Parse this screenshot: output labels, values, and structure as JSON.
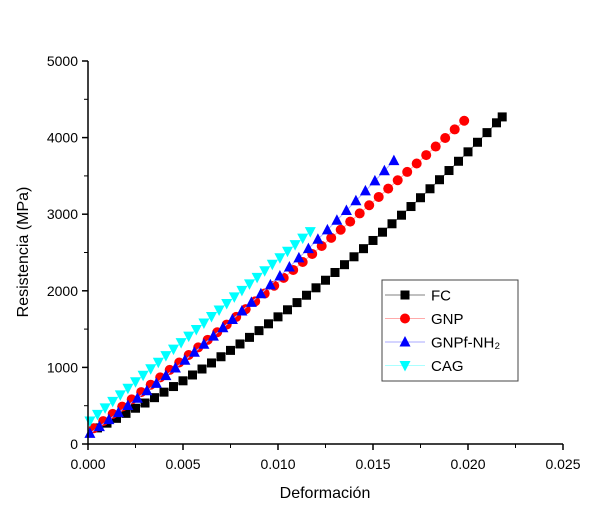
{
  "chart_data": {
    "type": "scatter",
    "title": "",
    "xlabel": "Deformación",
    "ylabel": "Resistencia (MPa)",
    "xlim": [
      0,
      0.025
    ],
    "ylim": [
      0,
      5000
    ],
    "xticks": [
      "0.000",
      "0.005",
      "0.010",
      "0.015",
      "0.020",
      "0.025"
    ],
    "yticks": [
      "0",
      "1000",
      "2000",
      "3000",
      "4000",
      "5000"
    ],
    "grid": false,
    "legend_position": "right",
    "series": [
      {
        "name": "FC",
        "marker": "square",
        "color": "#000000",
        "line_color": "#808080",
        "x": [
          0.0005,
          0.001,
          0.0015,
          0.002,
          0.0025,
          0.003,
          0.0035,
          0.004,
          0.0045,
          0.005,
          0.0055,
          0.006,
          0.0065,
          0.007,
          0.0075,
          0.008,
          0.0085,
          0.009,
          0.0095,
          0.01,
          0.0105,
          0.011,
          0.0115,
          0.012,
          0.0125,
          0.013,
          0.0135,
          0.014,
          0.0145,
          0.015,
          0.0155,
          0.016,
          0.0165,
          0.017,
          0.0175,
          0.018,
          0.0185,
          0.019,
          0.0195,
          0.02,
          0.0205,
          0.021,
          0.0215,
          0.0218
        ],
        "y": [
          210,
          272,
          335,
          400,
          467,
          535,
          605,
          677,
          750,
          825,
          901,
          979,
          1058,
          1139,
          1222,
          1306,
          1392,
          1480,
          1569,
          1660,
          1752,
          1846,
          1942,
          2039,
          2138,
          2239,
          2341,
          2444,
          2550,
          2657,
          2765,
          2875,
          2987,
          3100,
          3215,
          3332,
          3450,
          3570,
          3691,
          3814,
          3939,
          4065,
          4193,
          4270
        ]
      },
      {
        "name": "GNP",
        "marker": "circle",
        "color": "#ff0000",
        "line_color": "#ffaaaa",
        "x": [
          0.0003,
          0.0008,
          0.0013,
          0.0018,
          0.0023,
          0.0028,
          0.0033,
          0.0038,
          0.0043,
          0.0048,
          0.0053,
          0.0058,
          0.0063,
          0.0068,
          0.0073,
          0.0078,
          0.0083,
          0.0088,
          0.0093,
          0.0098,
          0.0103,
          0.0108,
          0.0113,
          0.0118,
          0.0123,
          0.0128,
          0.0133,
          0.0138,
          0.0143,
          0.0148,
          0.0153,
          0.0158,
          0.0163,
          0.0168,
          0.0173,
          0.0178,
          0.0183,
          0.0188,
          0.0193,
          0.0198
        ],
        "y": [
          206,
          299,
          393,
          488,
          582,
          678,
          774,
          870,
          967,
          1064,
          1162,
          1261,
          1360,
          1459,
          1559,
          1659,
          1760,
          1862,
          1964,
          2066,
          2169,
          2272,
          2376,
          2481,
          2585,
          2691,
          2797,
          2903,
          3010,
          3117,
          3225,
          3334,
          3443,
          3552,
          3662,
          3772,
          3883,
          3995,
          4107,
          4220
        ]
      },
      {
        "name": "GNPf-NH₂",
        "marker": "triangle-up",
        "color": "#0000ff",
        "line_color": "#aaaaff",
        "x": [
          0.0001,
          0.0006,
          0.0011,
          0.0016,
          0.0021,
          0.0026,
          0.0031,
          0.0036,
          0.0041,
          0.0046,
          0.0051,
          0.0056,
          0.0061,
          0.0066,
          0.0071,
          0.0076,
          0.0081,
          0.0086,
          0.0091,
          0.0096,
          0.0101,
          0.0106,
          0.0111,
          0.0116,
          0.0121,
          0.0126,
          0.0131,
          0.0136,
          0.0141,
          0.0146,
          0.0151,
          0.0156,
          0.0161
        ],
        "y": [
          138,
          227,
          318,
          410,
          503,
          598,
          695,
          792,
          892,
          992,
          1094,
          1198,
          1303,
          1409,
          1517,
          1626,
          1737,
          1849,
          1962,
          2077,
          2193,
          2311,
          2430,
          2551,
          2673,
          2796,
          2921,
          3048,
          3175,
          3304,
          3435,
          3567,
          3700
        ]
      },
      {
        "name": "CAG",
        "marker": "triangle-down",
        "color": "#00ffff",
        "line_color": "#aaffff",
        "x": [
          0.0001,
          0.0005,
          0.0009,
          0.0013,
          0.0017,
          0.0021,
          0.0025,
          0.0029,
          0.0033,
          0.0037,
          0.0041,
          0.0045,
          0.0049,
          0.0053,
          0.0057,
          0.0061,
          0.0065,
          0.0069,
          0.0073,
          0.0077,
          0.0081,
          0.0085,
          0.0089,
          0.0093,
          0.0097,
          0.0101,
          0.0105,
          0.0109,
          0.0113,
          0.0117
        ],
        "y": [
          301,
          387,
          472,
          557,
          642,
          727,
          813,
          898,
          983,
          1068,
          1153,
          1239,
          1324,
          1409,
          1494,
          1579,
          1665,
          1750,
          1835,
          1920,
          2005,
          2091,
          2176,
          2261,
          2346,
          2431,
          2517,
          2602,
          2687,
          2772
        ]
      }
    ]
  }
}
